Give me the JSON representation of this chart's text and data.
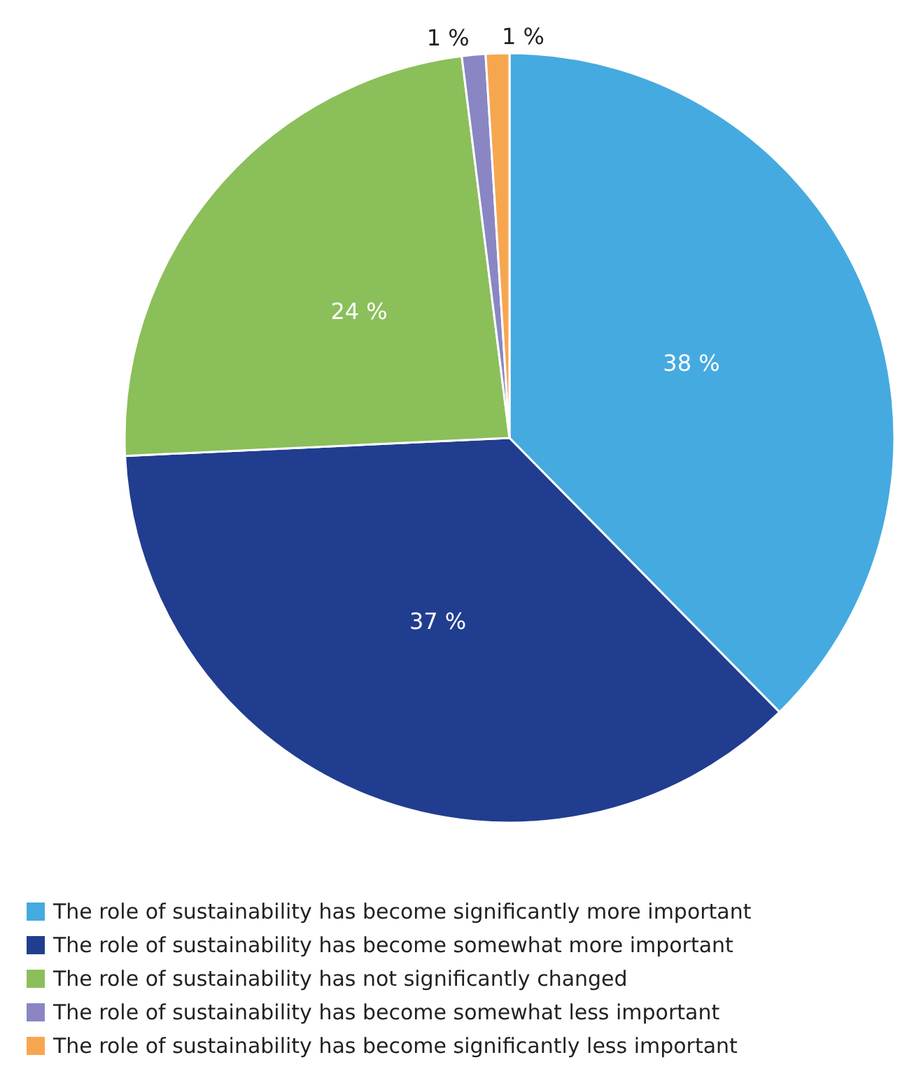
{
  "chart_data": {
    "type": "pie",
    "categories": [
      "The role of sustainability has become significantly more important",
      "The role of sustainability has become somewhat more important",
      "The role of sustainability has not significantly changed",
      "The role of sustainability has become somewhat less important",
      "The role of sustainability has become significantly less important"
    ],
    "values": [
      38,
      37,
      24,
      1,
      1
    ],
    "value_labels": [
      "38 %",
      "37 %",
      "24 %",
      "1 %",
      "1 %"
    ],
    "colors": [
      "#45aae0",
      "#213d8f",
      "#8bbf5a",
      "#8a86c4",
      "#f7a650"
    ],
    "legend": "bottom left"
  }
}
